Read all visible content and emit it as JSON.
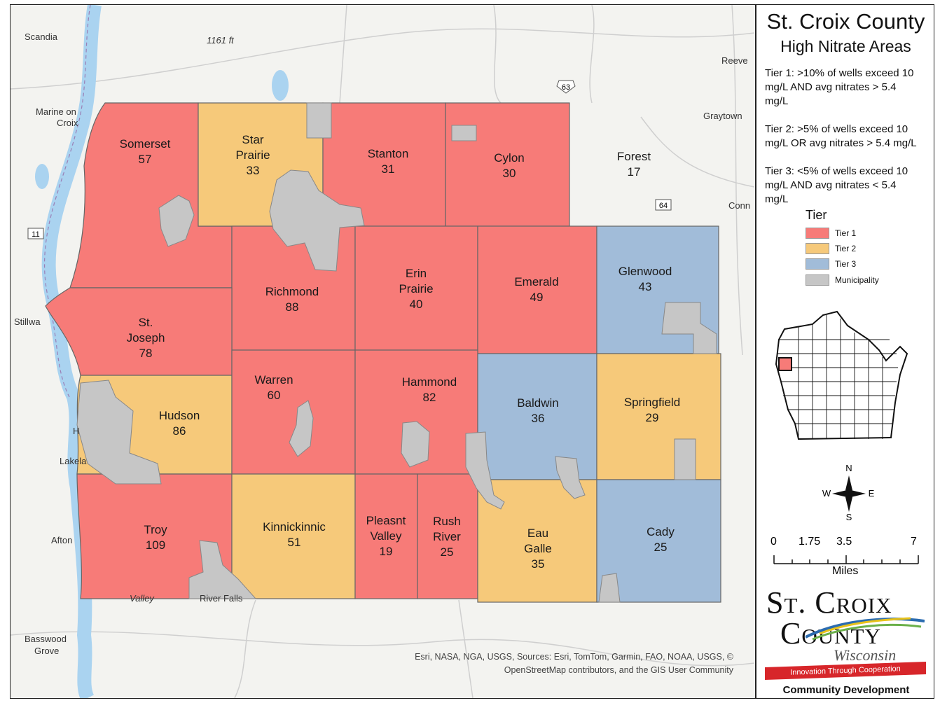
{
  "title": "St. Croix County",
  "subtitle": "High Nitrate Areas",
  "tier_definitions": [
    {
      "key": "tier1",
      "line1": "Tier 1: >10% of wells exceed 10",
      "line2": "mg/L AND avg nitrates > 5.4",
      "line3": "mg/L"
    },
    {
      "key": "tier2",
      "line1": "Tier 2: >5% of wells exceed 10",
      "line2": "mg/L OR avg nitrates > 5.4 mg/L",
      "line3": ""
    },
    {
      "key": "tier3",
      "line1": "Tier 3: <5% of wells exceed 10",
      "line2": "mg/L AND avg nitrates < 5.4",
      "line3": "mg/L"
    }
  ],
  "legend": {
    "heading": "Tier",
    "items": [
      {
        "label": "Tier 1",
        "color": "#f77b78"
      },
      {
        "label": "Tier 2",
        "color": "#f6c97a"
      },
      {
        "label": "Tier 3",
        "color": "#a1bcd9"
      },
      {
        "label": "Municipality",
        "color": "#c6c6c6"
      }
    ]
  },
  "colors": {
    "tier1": "#f77b78",
    "tier2": "#f6c97a",
    "tier3": "#a1bcd9",
    "municipality": "#c6c6c6",
    "outline": "#666666",
    "water": "#aad3f0",
    "basemap": "#f3f3f0"
  },
  "townships": [
    {
      "name": "Somerset",
      "value": "57",
      "tier": "tier1"
    },
    {
      "name": "Star Prairie",
      "value": "33",
      "tier": "tier2"
    },
    {
      "name": "Stanton",
      "value": "31",
      "tier": "tier1"
    },
    {
      "name": "Cylon",
      "value": "30",
      "tier": "tier1"
    },
    {
      "name": "Forest",
      "value": "17",
      "tier": "none"
    },
    {
      "name": "Richmond",
      "value": "88",
      "tier": "tier1"
    },
    {
      "name": "Erin Prairie",
      "value": "40",
      "tier": "tier1"
    },
    {
      "name": "Emerald",
      "value": "49",
      "tier": "tier1"
    },
    {
      "name": "Glenwood",
      "value": "43",
      "tier": "tier3"
    },
    {
      "name": "St. Joseph",
      "value": "78",
      "tier": "tier1"
    },
    {
      "name": "Hudson",
      "value": "86",
      "tier": "tier2"
    },
    {
      "name": "Warren",
      "value": "60",
      "tier": "tier1"
    },
    {
      "name": "Hammond",
      "value": "82",
      "tier": "tier1"
    },
    {
      "name": "Baldwin",
      "value": "36",
      "tier": "tier3"
    },
    {
      "name": "Springfield",
      "value": "29",
      "tier": "tier2"
    },
    {
      "name": "Troy",
      "value": "109",
      "tier": "tier1"
    },
    {
      "name": "Kinnickinnic",
      "value": "51",
      "tier": "tier2"
    },
    {
      "name": "Pleasnt Valley",
      "value": "19",
      "tier": "tier1"
    },
    {
      "name": "Rush River",
      "value": "25",
      "tier": "tier1"
    },
    {
      "name": "Eau Galle",
      "value": "35",
      "tier": "tier2"
    },
    {
      "name": "Cady",
      "value": "25",
      "tier": "tier3"
    }
  ],
  "basemap_labels": [
    "Scandia",
    "1161 ft",
    "Reeve",
    "Marine on",
    "Croix",
    "Graytown",
    "Conn",
    "Stillwa",
    "H",
    "Lakela",
    "Afton",
    "Valley",
    "River Falls",
    "Basswood",
    "Grove"
  ],
  "road_shields": [
    "63",
    "64",
    "11"
  ],
  "compass": {
    "n": "N",
    "s": "S",
    "e": "E",
    "w": "W"
  },
  "scale": {
    "ticks": [
      "0",
      "1.75",
      "3.5",
      "7"
    ],
    "unit": "Miles"
  },
  "logo": {
    "line1": "St. Croix",
    "line2": "County",
    "line3": "Wisconsin",
    "banner": "Innovation Through Cooperation",
    "dept": "Community Development"
  },
  "attribution": {
    "line1": "Esri, NASA, NGA, USGS, Sources: Esri, TomTom, Garmin, FAO, NOAA, USGS, ©",
    "line2": "OpenStreetMap contributors, and the GIS User Community"
  }
}
